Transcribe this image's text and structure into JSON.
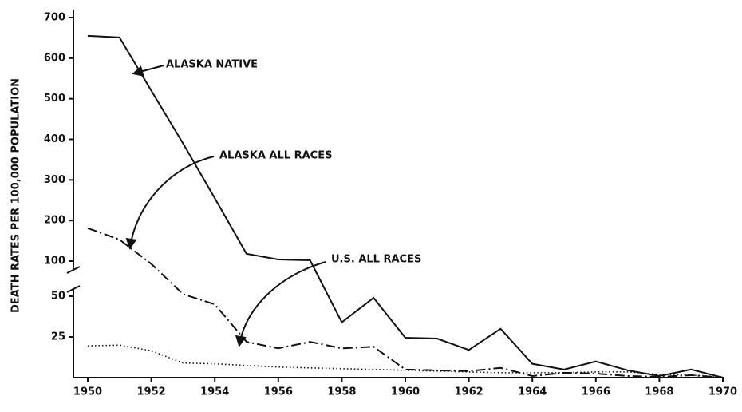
{
  "chart_data": {
    "type": "line",
    "y_label": "DEATH RATES PER 100,000 POPULATION",
    "x": [
      1950,
      1951,
      1952,
      1953,
      1954,
      1955,
      1956,
      1957,
      1958,
      1959,
      1960,
      1961,
      1962,
      1963,
      1964,
      1965,
      1966,
      1967,
      1968,
      1969,
      1970
    ],
    "series": [
      {
        "name": "ALASKA NATIVE",
        "color": "#111111",
        "style": "solid",
        "values": [
          655,
          651,
          520,
          390,
          255,
          118,
          104,
          102,
          34,
          49,
          24.5,
          24,
          17,
          30,
          8.5,
          5,
          10,
          4.5,
          1,
          5,
          0
        ]
      },
      {
        "name": "ALASKA ALL RACES",
        "color": "#111111",
        "style": "dashdot",
        "values": [
          181,
          153,
          96,
          53,
          45,
          22,
          18,
          22,
          18,
          19,
          5,
          4.5,
          4,
          6,
          1,
          3,
          2.5,
          1,
          0.5,
          1.5,
          0
        ]
      },
      {
        "name": "U.S. ALL RACES",
        "color": "#111111",
        "style": "dotted",
        "values": [
          19.5,
          20,
          16.5,
          9,
          8.5,
          7.5,
          6.5,
          6,
          5.5,
          5,
          4.5,
          4,
          3.5,
          3,
          3,
          3,
          3.5,
          3.5,
          2,
          1.5,
          0.5
        ]
      }
    ],
    "xlim": [
      1950,
      1970
    ],
    "xticks": [
      1950,
      1952,
      1954,
      1956,
      1958,
      1960,
      1962,
      1964,
      1966,
      1968,
      1970
    ],
    "ylim": [
      0,
      700
    ],
    "y_break": [
      50,
      100
    ],
    "yticks": [
      25,
      50,
      100,
      200,
      300,
      400,
      500,
      600,
      700
    ]
  }
}
